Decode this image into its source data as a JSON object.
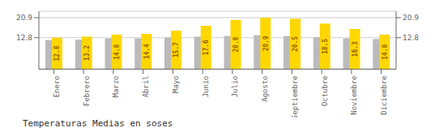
{
  "chart_data": {
    "type": "bar",
    "title": "Temperaturas Medias en soses",
    "categories": [
      "Enero",
      "Febrero",
      "Marzo",
      "Abril",
      "Mayo",
      "Junio",
      "Julio",
      "Agosto",
      "Septiembre",
      "Octubre",
      "Noviembre",
      "Diciembre"
    ],
    "series": [
      {
        "color": "#BBBBBB",
        "values": [
          11.8,
          12.0,
          12.5,
          12.5,
          12.8,
          13.2,
          13.5,
          13.8,
          13.5,
          13.0,
          12.5,
          12.2
        ]
      },
      {
        "color": "#FFD700",
        "values": [
          12.8,
          13.2,
          14.0,
          14.4,
          15.7,
          17.6,
          20.0,
          20.9,
          20.5,
          18.5,
          16.3,
          14.0
        ],
        "data_labels": true,
        "value_labels": [
          "12.8",
          "13.2",
          "14.0",
          "14.4",
          "15.7",
          "17.6",
          "20.0",
          "20.9",
          "20.5",
          "18.5",
          "16.3",
          "14.0"
        ]
      }
    ],
    "ylim": [
      0,
      23.5
    ],
    "yticks": [
      12.8,
      20.9
    ],
    "y2lim": [
      0,
      23.5
    ],
    "y2ticks": [
      12.8,
      20.9
    ],
    "grid": true
  }
}
